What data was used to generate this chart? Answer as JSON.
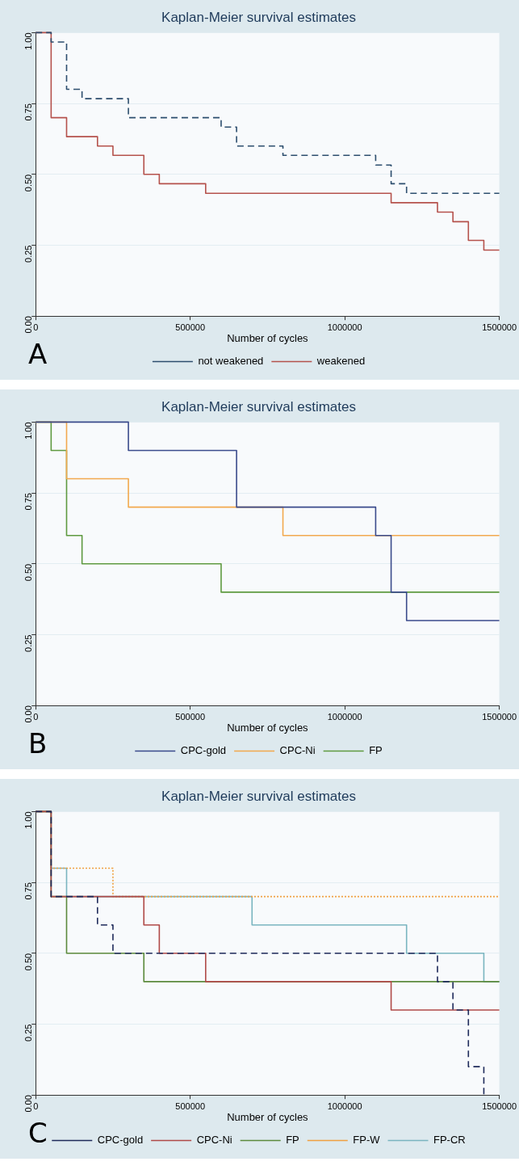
{
  "chart_data": [
    {
      "type": "step",
      "title": "Kaplan-Meier survival estimates",
      "xlabel": "Number of cycles",
      "xlim": [
        0,
        1500000
      ],
      "xticks": [
        0,
        500000,
        1000000,
        1500000
      ],
      "ylim": [
        0,
        1
      ],
      "yticks": [
        {
          "value": 0,
          "label": "0.00"
        },
        {
          "value": 0.25,
          "label": "0.25"
        },
        {
          "value": 0.5,
          "label": "0.50"
        },
        {
          "value": 0.75,
          "label": "0.75"
        },
        {
          "value": 1,
          "label": "1.00"
        }
      ],
      "grid": "y",
      "legend": "bottom",
      "marker": "none",
      "annotations": [
        "A"
      ],
      "series": [
        {
          "name": "not weakened",
          "color": "#2d4e6e",
          "line_style": "dashed",
          "x": [
            0,
            50000,
            100000,
            150000,
            300000,
            600000,
            650000,
            800000,
            1100000,
            1150000,
            1200000,
            1500000
          ],
          "values": [
            1,
            0.967,
            0.8,
            0.767,
            0.7,
            0.667,
            0.6,
            0.567,
            0.533,
            0.467,
            0.433,
            0.433
          ]
        },
        {
          "name": "weakened",
          "color": "#b5524c",
          "line_style": "solid",
          "x": [
            0,
            50000,
            100000,
            200000,
            250000,
            350000,
            400000,
            550000,
            1150000,
            1300000,
            1350000,
            1400000,
            1450000,
            1500000
          ],
          "values": [
            1,
            0.7,
            0.633,
            0.6,
            0.567,
            0.5,
            0.467,
            0.433,
            0.4,
            0.367,
            0.333,
            0.267,
            0.233,
            0.233
          ]
        }
      ]
    },
    {
      "type": "step",
      "title": "Kaplan-Meier survival estimates",
      "xlabel": "Number of cycles",
      "xlim": [
        0,
        1500000
      ],
      "xticks": [
        0,
        500000,
        1000000,
        1500000
      ],
      "ylim": [
        0,
        1
      ],
      "yticks": [
        {
          "value": 0,
          "label": "0.00"
        },
        {
          "value": 0.25,
          "label": "0.25"
        },
        {
          "value": 0.5,
          "label": "0.50"
        },
        {
          "value": 0.75,
          "label": "0.75"
        },
        {
          "value": 1,
          "label": "1.00"
        }
      ],
      "grid": "y",
      "legend": "bottom",
      "marker": "none",
      "annotations": [
        "B"
      ],
      "series": [
        {
          "name": "CPC-gold",
          "color": "#3b4b8c",
          "line_style": "solid",
          "x": [
            0,
            300000,
            650000,
            1100000,
            1150000,
            1200000,
            1500000
          ],
          "values": [
            1,
            0.9,
            0.7,
            0.6,
            0.4,
            0.3,
            0.3
          ]
        },
        {
          "name": "CPC-Ni",
          "color": "#f2a94e",
          "line_style": "solid",
          "x": [
            0,
            100000,
            300000,
            800000,
            1500000
          ],
          "values": [
            1,
            0.8,
            0.7,
            0.6,
            0.6
          ]
        },
        {
          "name": "FP",
          "color": "#5f9a40",
          "line_style": "solid",
          "x": [
            0,
            50000,
            100000,
            150000,
            600000,
            1500000
          ],
          "values": [
            1,
            0.9,
            0.6,
            0.5,
            0.4,
            0.4
          ]
        }
      ]
    },
    {
      "type": "step",
      "title": "Kaplan-Meier survival estimates",
      "xlabel": "Number of cycles",
      "xlim": [
        0,
        1500000
      ],
      "xticks": [
        0,
        500000,
        1000000,
        1500000
      ],
      "ylim": [
        0,
        1
      ],
      "yticks": [
        {
          "value": 0,
          "label": "0.00"
        },
        {
          "value": 0.25,
          "label": "0.25"
        },
        {
          "value": 0.5,
          "label": "0.50"
        },
        {
          "value": 0.75,
          "label": "0.75"
        },
        {
          "value": 1,
          "label": "1.00"
        }
      ],
      "grid": "y",
      "legend": "bottom",
      "marker": "none",
      "annotations": [
        "C"
      ],
      "series": [
        {
          "name": "CPC-gold",
          "color": "#1e2a5a",
          "line_style": "dashed",
          "x": [
            0,
            50000,
            200000,
            250000,
            1300000,
            1350000,
            1400000,
            1450000
          ],
          "values": [
            1,
            0.7,
            0.6,
            0.5,
            0.4,
            0.3,
            0.1,
            0
          ]
        },
        {
          "name": "CPC-Ni",
          "color": "#b04a48",
          "line_style": "solid",
          "x": [
            0,
            50000,
            350000,
            400000,
            550000,
            1150000,
            1500000
          ],
          "values": [
            1,
            0.7,
            0.6,
            0.5,
            0.4,
            0.3,
            0.3
          ]
        },
        {
          "name": "FP",
          "color": "#5c8a3c",
          "line_style": "solid",
          "x": [
            0,
            50000,
            100000,
            350000,
            1500000
          ],
          "values": [
            1,
            0.7,
            0.5,
            0.4,
            0.4
          ]
        },
        {
          "name": "FP-W",
          "color": "#f0a040",
          "line_style": "dotted",
          "x": [
            0,
            50000,
            250000,
            1500000
          ],
          "values": [
            1,
            0.8,
            0.7,
            0.7
          ]
        },
        {
          "name": "FP-CR",
          "color": "#7ab5c0",
          "line_style": "solid",
          "x": [
            0,
            50000,
            100000,
            700000,
            1200000,
            1450000,
            1500000
          ],
          "values": [
            1,
            0.8,
            0.7,
            0.6,
            0.5,
            0.4,
            0.4
          ]
        }
      ]
    }
  ]
}
